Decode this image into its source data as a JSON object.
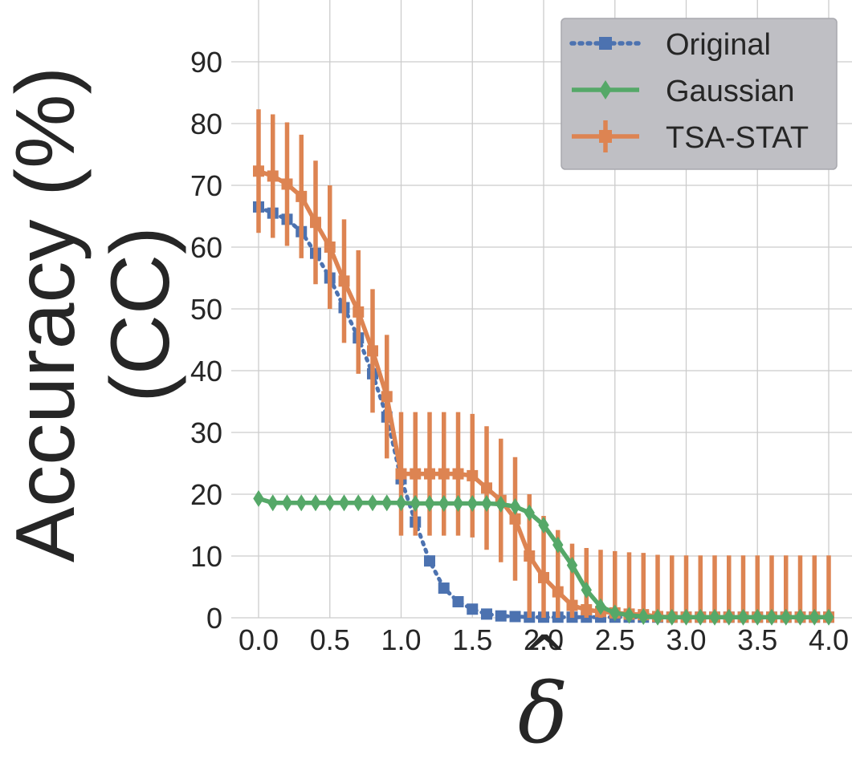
{
  "chart_data": {
    "type": "line",
    "xlabel": "δ",
    "xlabel_hat": "^",
    "ylabel": "Accuracy (%)",
    "ylabel_line2": "(CC)",
    "xlim": [
      0.0,
      4.0
    ],
    "ylim": [
      0,
      100
    ],
    "x_ticks": [
      0.0,
      0.5,
      1.0,
      1.5,
      2.0,
      2.5,
      3.0,
      3.5,
      4.0
    ],
    "x_tick_labels": [
      "0.0",
      "0.5",
      "1.0",
      "1.5",
      "2.0",
      "2.5",
      "3.0",
      "3.5",
      "4.0"
    ],
    "y_ticks": [
      0,
      10,
      20,
      30,
      40,
      50,
      60,
      70,
      80,
      90
    ],
    "y_tick_labels": [
      "0",
      "10",
      "20",
      "30",
      "40",
      "50",
      "60",
      "70",
      "80",
      "90"
    ],
    "grid": true,
    "legend_position": "top-right",
    "x": [
      0.0,
      0.1,
      0.2,
      0.3,
      0.4,
      0.5,
      0.6,
      0.7,
      0.8,
      0.9,
      1.0,
      1.1,
      1.2,
      1.3,
      1.4,
      1.5,
      1.6,
      1.7,
      1.8,
      1.9,
      2.0,
      2.1,
      2.2,
      2.3,
      2.4,
      2.5,
      2.6,
      2.7,
      2.8,
      2.9,
      3.0,
      3.1,
      3.2,
      3.3,
      3.4,
      3.5,
      3.6,
      3.7,
      3.8,
      3.9,
      4.0
    ],
    "series": [
      {
        "name": "Original",
        "color": "#4c72b0",
        "marker": "square",
        "linestyle": "dotted",
        "values": [
          66.5,
          65.5,
          64.5,
          62.5,
          59.0,
          55.0,
          50.2,
          45.3,
          39.5,
          32.5,
          22.5,
          15.5,
          9.2,
          4.8,
          2.6,
          1.4,
          0.6,
          0.3,
          0.2,
          0.1,
          0.1,
          0.1,
          0.1,
          0.1,
          0.1,
          0.1,
          0.1,
          0.1,
          0.1,
          0.1,
          0.1,
          0.1,
          0.1,
          0.1,
          0.1,
          0.1,
          0.1,
          0.1,
          0.1,
          0.1,
          0.1
        ]
      },
      {
        "name": "Gaussian",
        "color": "#55a868",
        "marker": "diamond",
        "linestyle": "solid",
        "values": [
          19.3,
          18.6,
          18.6,
          18.6,
          18.6,
          18.6,
          18.6,
          18.6,
          18.6,
          18.6,
          18.6,
          18.5,
          18.5,
          18.5,
          18.5,
          18.5,
          18.5,
          18.4,
          18.0,
          17.0,
          15.0,
          11.8,
          8.5,
          4.5,
          1.8,
          0.8,
          0.4,
          0.2,
          0.1,
          0.1,
          0.1,
          0.1,
          0.1,
          0.1,
          0.1,
          0.1,
          0.1,
          0.1,
          0.1,
          0.1,
          0.1
        ]
      },
      {
        "name": "TSA-STAT",
        "color": "#dd8452",
        "marker": "square",
        "linestyle": "solid",
        "values": [
          72.3,
          71.5,
          70.2,
          68.2,
          64.0,
          60.0,
          54.5,
          49.5,
          43.2,
          35.8,
          23.3,
          23.3,
          23.3,
          23.3,
          23.3,
          23.0,
          21.0,
          19.0,
          16.0,
          10.0,
          6.5,
          4.2,
          2.0,
          1.3,
          1.0,
          0.8,
          0.6,
          0.5,
          0.2,
          0.1,
          0.1,
          0.1,
          0.1,
          0.1,
          0.1,
          0.1,
          0.1,
          0.1,
          0.1,
          0.1,
          0.1
        ],
        "error": [
          10.0,
          10.0,
          10.0,
          10.0,
          10.0,
          10.0,
          10.0,
          10.0,
          10.0,
          10.0,
          10.0,
          10.0,
          10.0,
          10.0,
          10.0,
          10.0,
          10.0,
          10.0,
          10.0,
          10.0,
          10.0,
          10.0,
          10.0,
          10.0,
          10.0,
          10.0,
          10.0,
          10.0,
          10.0,
          10.0,
          10.0,
          10.0,
          10.0,
          10.0,
          10.0,
          10.0,
          10.0,
          10.0,
          10.0,
          10.0,
          10.0
        ]
      }
    ]
  }
}
